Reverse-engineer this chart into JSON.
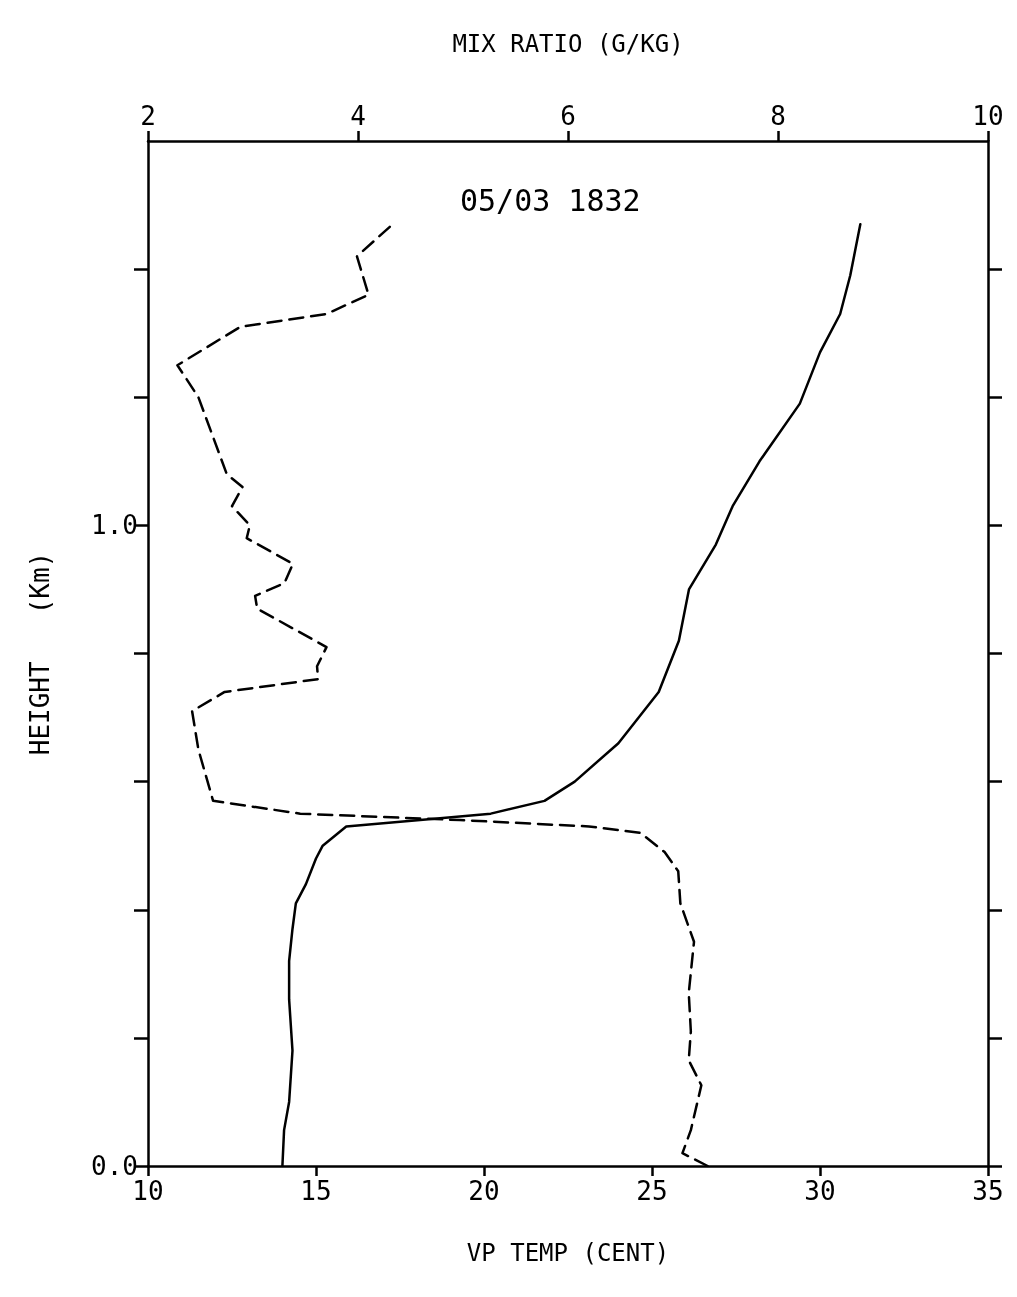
{
  "chart_data": {
    "type": "line",
    "title": "05/03 1832",
    "xlabel": "VP TEMP (CENT)",
    "x2label": "MIX RATIO (G/KG)",
    "ylabel": "HEIGHT   (Km)",
    "xlim": [
      10,
      35
    ],
    "xticks": [
      10,
      15,
      20,
      25,
      30,
      35
    ],
    "x2lim": [
      2,
      10
    ],
    "x2ticks": [
      2,
      4,
      6,
      8,
      10
    ],
    "ylim": [
      0,
      1.6
    ],
    "yticks": [
      {
        "value": 0,
        "label": "0.0"
      },
      {
        "value": 0.2,
        "label": null
      },
      {
        "value": 0.4,
        "label": null
      },
      {
        "value": 0.6,
        "label": null
      },
      {
        "value": 0.8,
        "label": null
      },
      {
        "value": 1.0,
        "label": "1.0"
      },
      {
        "value": 1.2,
        "label": null
      },
      {
        "value": 1.4,
        "label": null
      }
    ],
    "grid": false,
    "marker": "none",
    "series": [
      {
        "color": "#000000",
        "line_style": "solid",
        "x": [
          14.0,
          14.05,
          14.2,
          14.3,
          14.2,
          14.2,
          14.3,
          14.4,
          14.7,
          15.0,
          15.2,
          15.9,
          18.1,
          20.2,
          21.8,
          22.7,
          24.0,
          25.2,
          25.8,
          26.1,
          26.9,
          27.4,
          28.2,
          29.4,
          30.0,
          30.6,
          30.9,
          31.2
        ],
        "values": [
          0,
          0.056,
          0.1,
          0.18,
          0.26,
          0.32,
          0.37,
          0.41,
          0.44,
          0.48,
          0.5,
          0.53,
          0.54,
          0.55,
          0.57,
          0.6,
          0.66,
          0.74,
          0.82,
          0.9,
          0.97,
          1.03,
          1.1,
          1.19,
          1.27,
          1.33,
          1.39,
          1.47
        ]
      },
      {
        "color": "#000000",
        "line_style": "dashed",
        "axis": "x2",
        "x": [
          7.33,
          7.09,
          7.17,
          7.27,
          7.15,
          7.17,
          7.15,
          7.2,
          7.07,
          7.05,
          6.92,
          6.69,
          6.2,
          4.97,
          3.45,
          2.62,
          2.48,
          2.42,
          2.73,
          3.62,
          3.61,
          3.7,
          3.04,
          3.02,
          3.3,
          3.38,
          2.94,
          2.97,
          2.8,
          2.9,
          2.75,
          2.48,
          2.28,
          2.88,
          3.7,
          4.1,
          3.99,
          4.33
        ],
        "values": [
          0,
          0.02,
          0.056,
          0.126,
          0.165,
          0.21,
          0.27,
          0.35,
          0.41,
          0.46,
          0.49,
          0.52,
          0.53,
          0.54,
          0.55,
          0.57,
          0.65,
          0.71,
          0.74,
          0.76,
          0.78,
          0.81,
          0.87,
          0.89,
          0.91,
          0.94,
          0.98,
          1.0,
          1.03,
          1.06,
          1.08,
          1.2,
          1.25,
          1.31,
          1.33,
          1.36,
          1.42,
          1.47
        ]
      }
    ]
  }
}
